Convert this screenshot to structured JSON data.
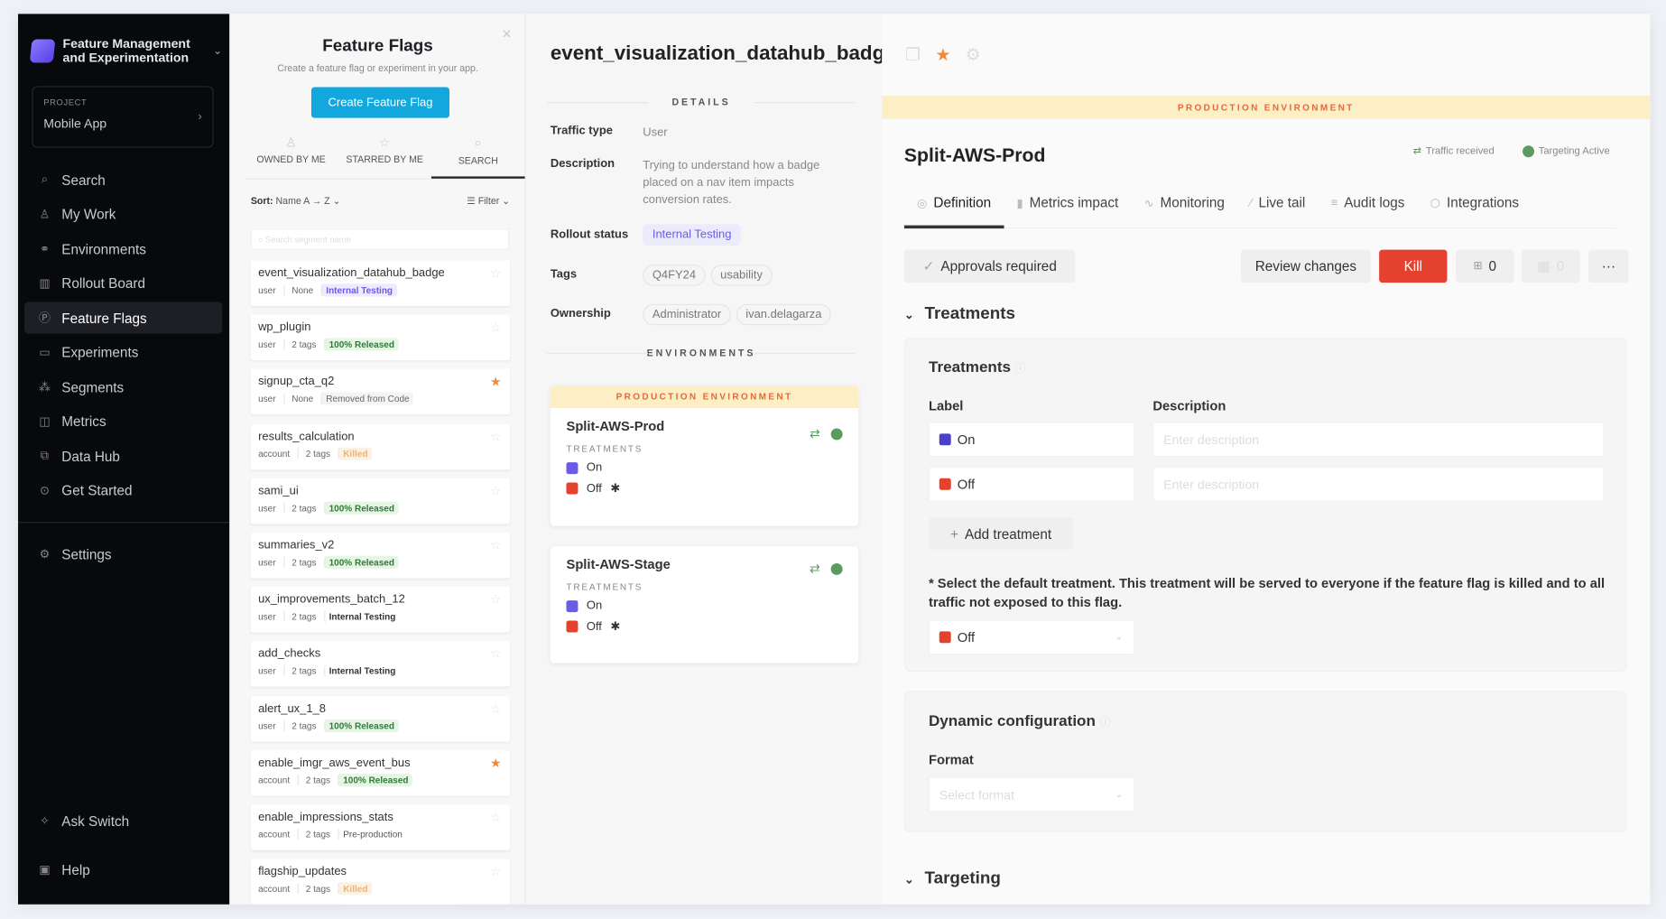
{
  "sidebar": {
    "app_name": "Feature Management and Experimentation",
    "project_label": "PROJECT",
    "project_name": "Mobile App",
    "items": [
      {
        "label": "Search",
        "icon": "search-icon"
      },
      {
        "label": "My Work",
        "icon": "user-icon"
      },
      {
        "label": "Environments",
        "icon": "environments-icon"
      },
      {
        "label": "Rollout Board",
        "icon": "board-icon"
      },
      {
        "label": "Feature Flags",
        "icon": "flag-icon",
        "active": true
      },
      {
        "label": "Experiments",
        "icon": "experiments-icon"
      },
      {
        "label": "Segments",
        "icon": "segments-icon"
      },
      {
        "label": "Metrics",
        "icon": "metrics-icon"
      },
      {
        "label": "Data Hub",
        "icon": "data-hub-icon"
      },
      {
        "label": "Get Started",
        "icon": "play-icon"
      }
    ],
    "settings": "Settings",
    "ask": "Ask Switch",
    "help": "Help"
  },
  "flag_list": {
    "title": "Feature Flags",
    "subtitle": "Create a feature flag or experiment in your app.",
    "create_button": "Create Feature Flag",
    "tabs": [
      "OWNED BY ME",
      "STARRED BY ME",
      "SEARCH"
    ],
    "active_tab": "SEARCH",
    "sort_label": "Sort:",
    "sort_value": "Name  A → Z",
    "filter_label": "Filter",
    "search_placeholder": "Search segment name",
    "flags": [
      {
        "name": "event_visualization_datahub_badge",
        "traffic": "user",
        "tags": "None",
        "status": "Internal Testing",
        "kind": "internal-blue",
        "starred": false
      },
      {
        "name": "wp_plugin",
        "traffic": "user",
        "tags": "2 tags",
        "status": "100% Released",
        "kind": "released",
        "starred": false
      },
      {
        "name": "signup_cta_q2",
        "traffic": "user",
        "tags": "None",
        "status": "Removed from Code",
        "kind": "removed",
        "starred": true
      },
      {
        "name": "results_calculation",
        "traffic": "account",
        "tags": "2 tags",
        "status": "Killed",
        "kind": "killed",
        "starred": false
      },
      {
        "name": "sami_ui",
        "traffic": "user",
        "tags": "2 tags",
        "status": "100% Released",
        "kind": "released",
        "starred": false
      },
      {
        "name": "summaries_v2",
        "traffic": "user",
        "tags": "2 tags",
        "status": "100% Released",
        "kind": "released",
        "starred": false
      },
      {
        "name": "ux_improvements_batch_12",
        "traffic": "user",
        "tags": "2 tags",
        "status": "Internal Testing",
        "kind": "internal",
        "starred": false
      },
      {
        "name": "add_checks",
        "traffic": "user",
        "tags": "2 tags",
        "status": "Internal Testing",
        "kind": "internal",
        "starred": false
      },
      {
        "name": "alert_ux_1_8",
        "traffic": "user",
        "tags": "2 tags",
        "status": "100% Released",
        "kind": "released",
        "starred": false
      },
      {
        "name": "enable_imgr_aws_event_bus",
        "traffic": "account",
        "tags": "2 tags",
        "status": "100% Released",
        "kind": "released",
        "starred": true
      },
      {
        "name": "enable_impressions_stats",
        "traffic": "account",
        "tags": "2 tags",
        "status": "Pre-production",
        "kind": "pre",
        "starred": false
      },
      {
        "name": "flagship_updates",
        "traffic": "account",
        "tags": "2 tags",
        "status": "Killed",
        "kind": "killed",
        "starred": false
      }
    ]
  },
  "details": {
    "title": "event_visualization_datahub_badge",
    "section_details": "DETAILS",
    "traffic_type_label": "Traffic type",
    "traffic_type": "User",
    "description_label": "Description",
    "description": "Trying to understand how a badge placed on a nav item impacts conversion rates.",
    "rollout_label": "Rollout status",
    "rollout_status": "Internal Testing",
    "tags_label": "Tags",
    "tags": [
      "Q4FY24",
      "usability"
    ],
    "ownership_label": "Ownership",
    "owners": [
      "Administrator",
      "ivan.delagarza"
    ],
    "section_envs": "ENVIRONMENTS",
    "prod_banner": "PRODUCTION ENVIRONMENT",
    "treatments_label": "TREATMENTS",
    "environments": [
      {
        "name": "Split-AWS-Prod",
        "treatments": [
          "On",
          "Off"
        ]
      },
      {
        "name": "Split-AWS-Stage",
        "treatments": [
          "On",
          "Off"
        ]
      }
    ]
  },
  "panel": {
    "banner": "PRODUCTION ENVIRONMENT",
    "env_name": "Split-AWS-Prod",
    "traffic_received": "Traffic received",
    "targeting_active": "Targeting Active",
    "tabs": [
      "Definition",
      "Metrics impact",
      "Monitoring",
      "Live tail",
      "Audit logs",
      "Integrations"
    ],
    "approvals": "Approvals required",
    "review": "Review changes",
    "kill": "Kill",
    "count1": "0",
    "count2": "0",
    "more": "···",
    "treatments_section": "Treatments",
    "treatments_box_title": "Treatments",
    "label_col": "Label",
    "description_col": "Description",
    "treatments": [
      {
        "label": "On",
        "color": "#4b3fc8",
        "placeholder": "Enter description"
      },
      {
        "label": "Off",
        "color": "#e5412f",
        "placeholder": "Enter description"
      }
    ],
    "add_treatment": "Add treatment",
    "default_note": "* Select the default treatment. This treatment will be served to everyone if the feature flag is killed and to all traffic not exposed to this flag.",
    "default_treatment": "Off",
    "dynamic_config": "Dynamic configuration",
    "format_label": "Format",
    "format_placeholder": "Select format",
    "targeting": "Targeting"
  },
  "colors": {
    "accent": "#12a8dd",
    "kill": "#e5412f",
    "on": "#6a5ce8",
    "off": "#e5412f",
    "active": "#5b9a60",
    "banner": "#fcefc6"
  }
}
